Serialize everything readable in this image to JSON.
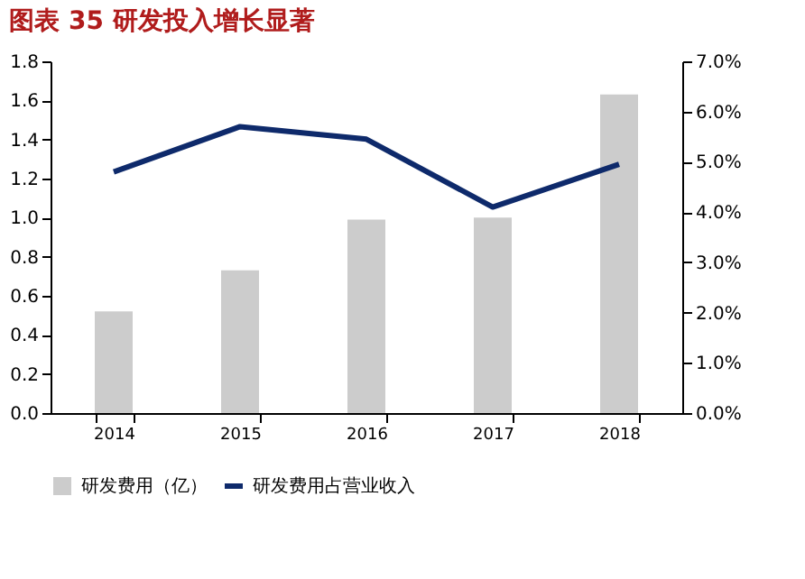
{
  "chart_data": {
    "type": "bar",
    "title": "图表 35   研发投入增长显著",
    "categories": [
      "2014",
      "2015",
      "2016",
      "2017",
      "2018"
    ],
    "series": [
      {
        "name": "研发费用（亿）",
        "color": "#cccccc",
        "values": [
          0.52,
          0.73,
          0.99,
          1.0,
          1.63
        ]
      },
      {
        "name": "研发费用占营业收入",
        "color": "#0e2a6b",
        "type": "line",
        "axis": "y2",
        "values": [
          4.8,
          5.7,
          5.45,
          4.1,
          4.95
        ]
      }
    ],
    "ylim": [
      0,
      1.8
    ],
    "yticks": [
      {
        "value": 0,
        "label": "0.0"
      },
      {
        "value": 0.2,
        "label": "0.2"
      },
      {
        "value": 0.4,
        "label": "0.4"
      },
      {
        "value": 0.6,
        "label": "0.6"
      },
      {
        "value": 0.8,
        "label": "0.8"
      },
      {
        "value": 1.0,
        "label": "1.0"
      },
      {
        "value": 1.2,
        "label": "1.2"
      },
      {
        "value": 1.4,
        "label": "1.4"
      },
      {
        "value": 1.6,
        "label": "1.6"
      },
      {
        "value": 1.8,
        "label": "1.8"
      }
    ],
    "y2lim": [
      0,
      7
    ],
    "y2ticks": [
      {
        "value": 0,
        "label": "0.0%"
      },
      {
        "value": 1,
        "label": "1.0%"
      },
      {
        "value": 2,
        "label": "2.0%"
      },
      {
        "value": 3,
        "label": "3.0%"
      },
      {
        "value": 4,
        "label": "4.0%"
      },
      {
        "value": 5,
        "label": "5.0%"
      },
      {
        "value": 6,
        "label": "6.0%"
      },
      {
        "value": 7,
        "label": "7.0%"
      }
    ],
    "grid": false,
    "legend": "bottom",
    "marker": "none",
    "line_style": "solid"
  }
}
